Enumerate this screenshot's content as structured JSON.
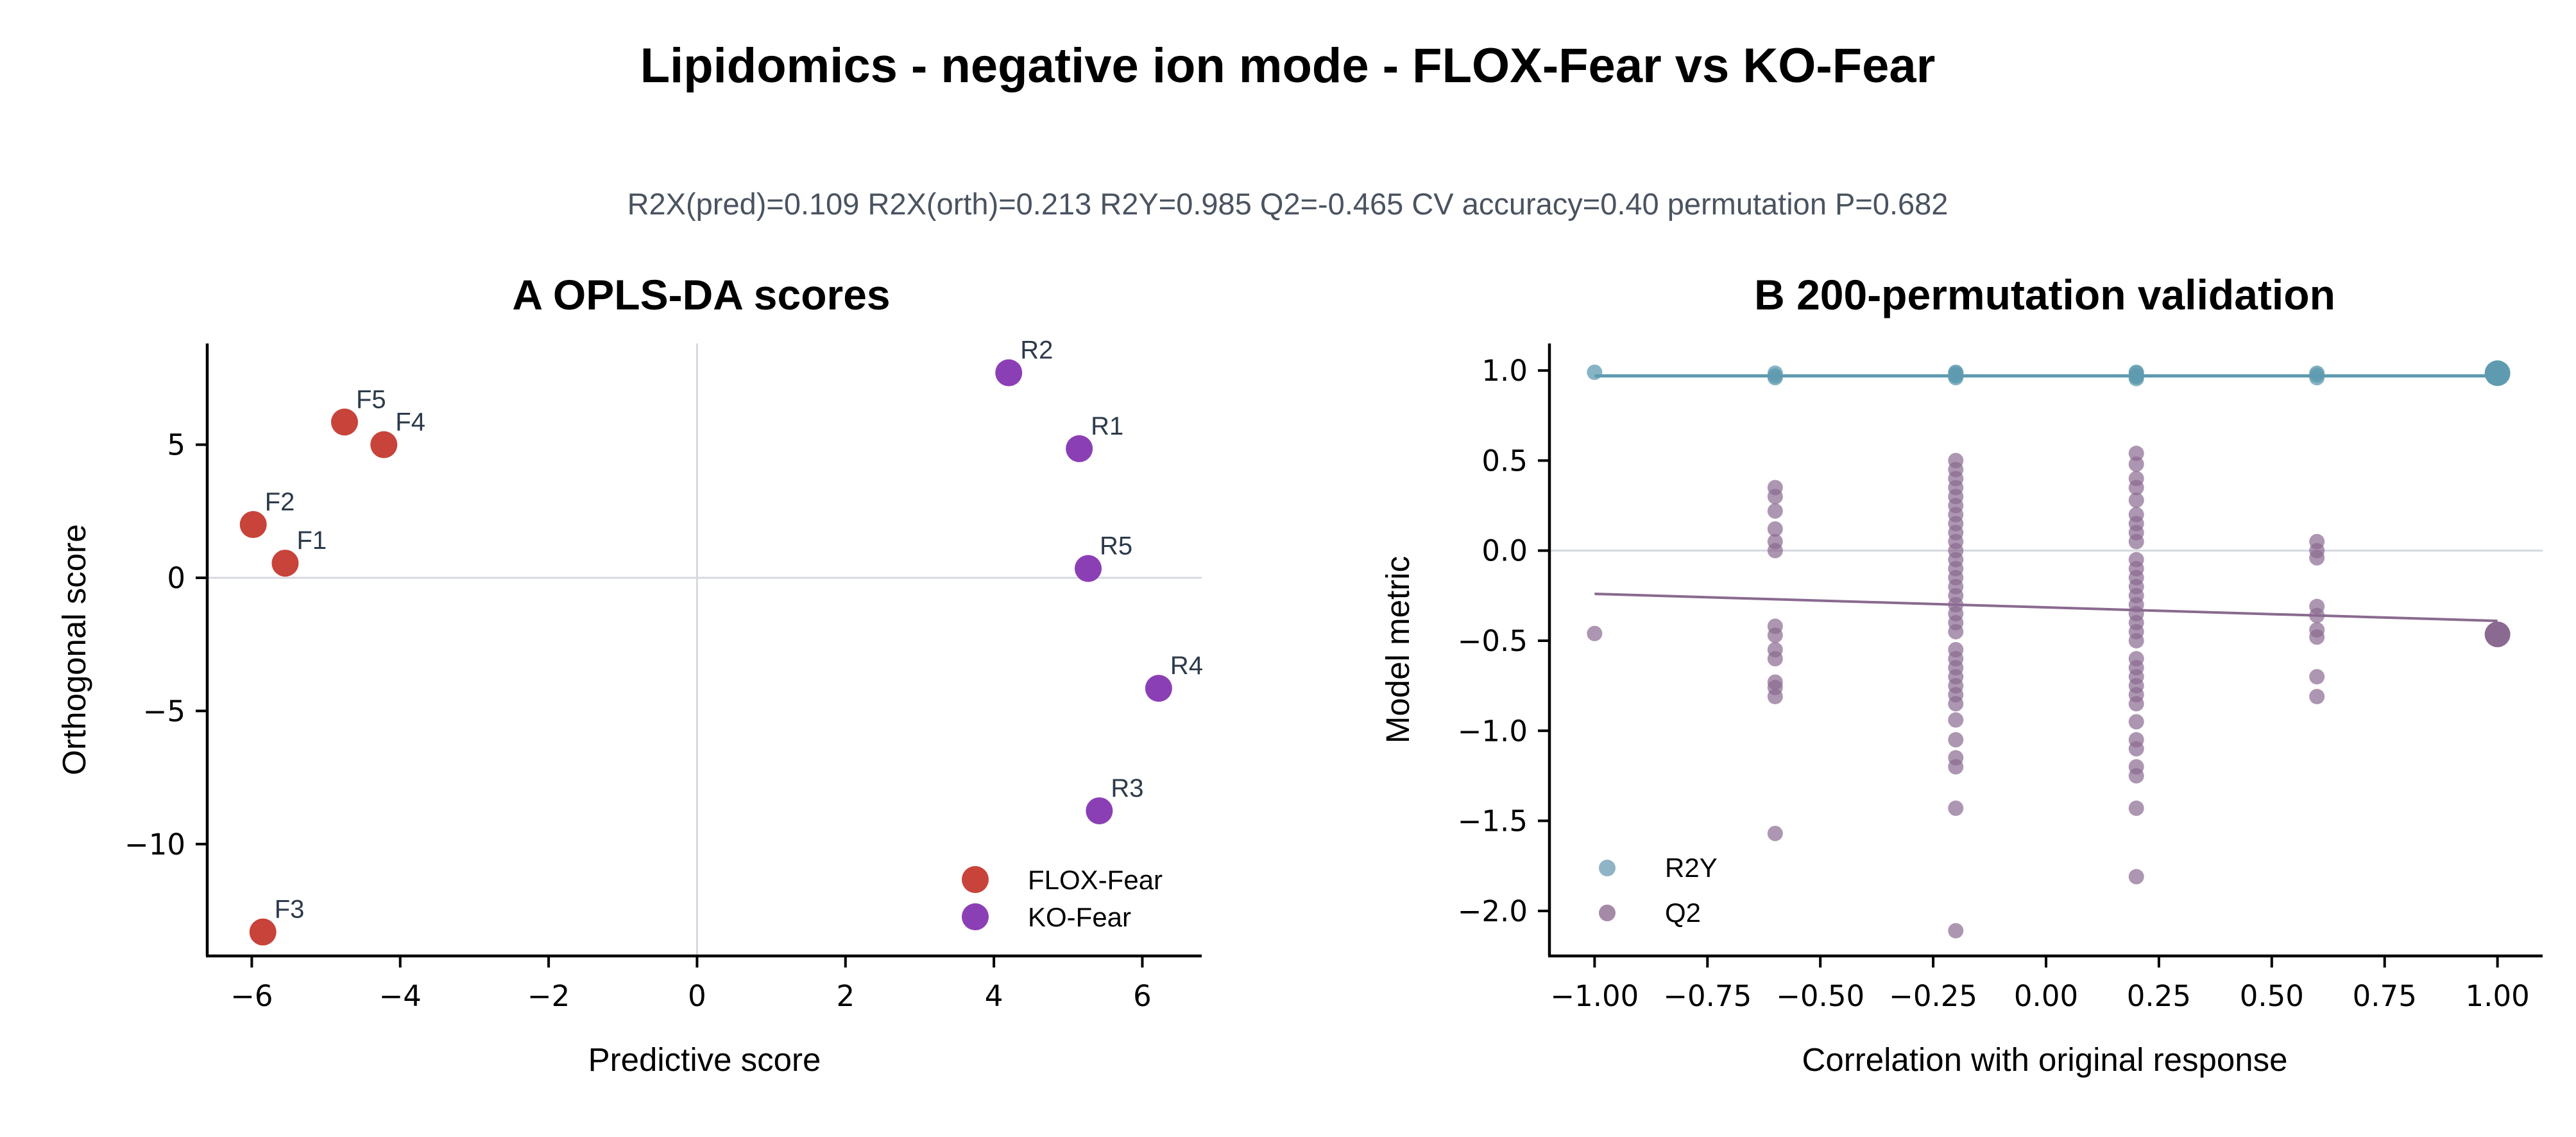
{
  "figure": {
    "title": "Lipidomics - negative ion mode - FLOX-Fear vs KO-Fear",
    "metrics": "R2X(pred)=0.109   R2X(orth)=0.213   R2Y=0.985   Q2=-0.465   CV accuracy=0.40   permutation P=0.682"
  },
  "colors": {
    "flox": "#c8433a",
    "ko": "#8b3fb5",
    "r2y": "#8fb4c6",
    "r2y_line": "#5f9bb0",
    "q2": "#a58aa8",
    "q2_dark": "#8a6a90",
    "q2_line": "#8a6a90",
    "refline": "#d5d8e0"
  },
  "chart_data": [
    {
      "type": "scatter",
      "panel": "A",
      "title": "A  OPLS-DA scores",
      "xlabel": "Predictive score",
      "ylabel": "Orthogonal score",
      "xlim": [
        -6.6,
        6.8
      ],
      "ylim": [
        -14.2,
        8.8
      ],
      "xticks": [
        -6,
        -4,
        -2,
        0,
        2,
        4,
        6
      ],
      "xtick_labels": [
        "−6",
        "−4",
        "−2",
        "0",
        "2",
        "4",
        "6"
      ],
      "yticks": [
        5,
        0,
        -5,
        -10
      ],
      "ytick_labels": [
        "5",
        "0",
        "−5",
        "−10"
      ],
      "grid": false,
      "reference_lines": {
        "x": 0,
        "y": 0
      },
      "legend_position": "lower-right",
      "series": [
        {
          "name": "FLOX-Fear",
          "color_key": "flox",
          "points": [
            {
              "label": "F1",
              "x": -5.55,
              "y": 0.55
            },
            {
              "label": "F2",
              "x": -5.98,
              "y": 2.0
            },
            {
              "label": "F3",
              "x": -5.85,
              "y": -13.3
            },
            {
              "label": "F4",
              "x": -4.22,
              "y": 5.0
            },
            {
              "label": "F5",
              "x": -4.75,
              "y": 5.85
            }
          ]
        },
        {
          "name": "KO-Fear",
          "color_key": "ko",
          "points": [
            {
              "label": "R1",
              "x": 5.15,
              "y": 4.85
            },
            {
              "label": "R2",
              "x": 4.2,
              "y": 7.7
            },
            {
              "label": "R3",
              "x": 5.42,
              "y": -8.75
            },
            {
              "label": "R4",
              "x": 6.22,
              "y": -4.15
            },
            {
              "label": "R5",
              "x": 5.27,
              "y": 0.35
            }
          ]
        }
      ]
    },
    {
      "type": "scatter",
      "panel": "B",
      "title": "B  200-permutation validation",
      "xlabel": "Correlation with original response",
      "ylabel": "Model metric",
      "xlim": [
        -1.1,
        1.1
      ],
      "ylim": [
        -2.25,
        1.15
      ],
      "xticks": [
        -1.0,
        -0.75,
        -0.5,
        -0.25,
        0.0,
        0.25,
        0.5,
        0.75,
        1.0
      ],
      "xtick_labels": [
        "−1.00",
        "−0.75",
        "−0.50",
        "−0.25",
        "0.00",
        "0.25",
        "0.50",
        "0.75",
        "1.00"
      ],
      "yticks": [
        1.0,
        0.5,
        0.0,
        -0.5,
        -1.0,
        -1.5,
        -2.0
      ],
      "ytick_labels": [
        "1.0",
        "0.5",
        "0.0",
        "−0.5",
        "−1.0",
        "−1.5",
        "−2.0"
      ],
      "grid": false,
      "reference_lines": {
        "y": 0
      },
      "legend_position": "lower-left",
      "original": {
        "x": 1.0,
        "r2y": 0.985,
        "q2": -0.465
      },
      "series": [
        {
          "name": "R2Y",
          "color_key": "r2y",
          "points": [
            {
              "x": -1.0,
              "y": 0.99
            },
            {
              "x": -0.6,
              "y": 0.97
            },
            {
              "x": -0.6,
              "y": 0.985
            },
            {
              "x": -0.6,
              "y": 0.96
            },
            {
              "x": -0.2,
              "y": 0.97
            },
            {
              "x": -0.2,
              "y": 0.985
            },
            {
              "x": -0.2,
              "y": 0.96
            },
            {
              "x": -0.2,
              "y": 0.975
            },
            {
              "x": -0.2,
              "y": 0.99
            },
            {
              "x": 0.2,
              "y": 0.97
            },
            {
              "x": 0.2,
              "y": 0.985
            },
            {
              "x": 0.2,
              "y": 0.955
            },
            {
              "x": 0.2,
              "y": 0.99
            },
            {
              "x": 0.2,
              "y": 0.965
            },
            {
              "x": 0.6,
              "y": 0.975
            },
            {
              "x": 0.6,
              "y": 0.96
            },
            {
              "x": 0.6,
              "y": 0.985
            }
          ],
          "fit_line": {
            "x": [
              -1.0,
              1.0
            ],
            "y": [
              0.97,
              0.97
            ]
          }
        },
        {
          "name": "Q2",
          "color_key": "q2",
          "points": [
            {
              "x": -1.0,
              "y": -0.46
            },
            {
              "x": -0.6,
              "y": 0.35
            },
            {
              "x": -0.6,
              "y": 0.3
            },
            {
              "x": -0.6,
              "y": 0.22
            },
            {
              "x": -0.6,
              "y": 0.12
            },
            {
              "x": -0.6,
              "y": 0.05
            },
            {
              "x": -0.6,
              "y": 0.0
            },
            {
              "x": -0.6,
              "y": -0.42
            },
            {
              "x": -0.6,
              "y": -0.47
            },
            {
              "x": -0.6,
              "y": -0.55
            },
            {
              "x": -0.6,
              "y": -0.6
            },
            {
              "x": -0.6,
              "y": -0.73
            },
            {
              "x": -0.6,
              "y": -0.76
            },
            {
              "x": -0.6,
              "y": -0.81
            },
            {
              "x": -0.6,
              "y": -1.57
            },
            {
              "x": -0.2,
              "y": 0.5
            },
            {
              "x": -0.2,
              "y": 0.45
            },
            {
              "x": -0.2,
              "y": 0.4
            },
            {
              "x": -0.2,
              "y": 0.35
            },
            {
              "x": -0.2,
              "y": 0.3
            },
            {
              "x": -0.2,
              "y": 0.25
            },
            {
              "x": -0.2,
              "y": 0.2
            },
            {
              "x": -0.2,
              "y": 0.15
            },
            {
              "x": -0.2,
              "y": 0.1
            },
            {
              "x": -0.2,
              "y": 0.05
            },
            {
              "x": -0.2,
              "y": 0.0
            },
            {
              "x": -0.2,
              "y": -0.05
            },
            {
              "x": -0.2,
              "y": -0.1
            },
            {
              "x": -0.2,
              "y": -0.15
            },
            {
              "x": -0.2,
              "y": -0.2
            },
            {
              "x": -0.2,
              "y": -0.25
            },
            {
              "x": -0.2,
              "y": -0.3
            },
            {
              "x": -0.2,
              "y": -0.35
            },
            {
              "x": -0.2,
              "y": -0.4
            },
            {
              "x": -0.2,
              "y": -0.45
            },
            {
              "x": -0.2,
              "y": -0.55
            },
            {
              "x": -0.2,
              "y": -0.6
            },
            {
              "x": -0.2,
              "y": -0.65
            },
            {
              "x": -0.2,
              "y": -0.7
            },
            {
              "x": -0.2,
              "y": -0.75
            },
            {
              "x": -0.2,
              "y": -0.8
            },
            {
              "x": -0.2,
              "y": -0.85
            },
            {
              "x": -0.2,
              "y": -0.94
            },
            {
              "x": -0.2,
              "y": -1.05
            },
            {
              "x": -0.2,
              "y": -1.15
            },
            {
              "x": -0.2,
              "y": -1.2
            },
            {
              "x": -0.2,
              "y": -1.43
            },
            {
              "x": -0.2,
              "y": -2.11
            },
            {
              "x": 0.2,
              "y": 0.54
            },
            {
              "x": 0.2,
              "y": 0.48
            },
            {
              "x": 0.2,
              "y": 0.4
            },
            {
              "x": 0.2,
              "y": 0.35
            },
            {
              "x": 0.2,
              "y": 0.28
            },
            {
              "x": 0.2,
              "y": 0.2
            },
            {
              "x": 0.2,
              "y": 0.15
            },
            {
              "x": 0.2,
              "y": 0.1
            },
            {
              "x": 0.2,
              "y": 0.05
            },
            {
              "x": 0.2,
              "y": -0.05
            },
            {
              "x": 0.2,
              "y": -0.1
            },
            {
              "x": 0.2,
              "y": -0.15
            },
            {
              "x": 0.2,
              "y": -0.2
            },
            {
              "x": 0.2,
              "y": -0.25
            },
            {
              "x": 0.2,
              "y": -0.3
            },
            {
              "x": 0.2,
              "y": -0.35
            },
            {
              "x": 0.2,
              "y": -0.4
            },
            {
              "x": 0.2,
              "y": -0.45
            },
            {
              "x": 0.2,
              "y": -0.5
            },
            {
              "x": 0.2,
              "y": -0.6
            },
            {
              "x": 0.2,
              "y": -0.65
            },
            {
              "x": 0.2,
              "y": -0.7
            },
            {
              "x": 0.2,
              "y": -0.75
            },
            {
              "x": 0.2,
              "y": -0.8
            },
            {
              "x": 0.2,
              "y": -0.85
            },
            {
              "x": 0.2,
              "y": -0.95
            },
            {
              "x": 0.2,
              "y": -1.05
            },
            {
              "x": 0.2,
              "y": -1.1
            },
            {
              "x": 0.2,
              "y": -1.2
            },
            {
              "x": 0.2,
              "y": -1.25
            },
            {
              "x": 0.2,
              "y": -1.43
            },
            {
              "x": 0.2,
              "y": -1.81
            },
            {
              "x": 0.6,
              "y": 0.05
            },
            {
              "x": 0.6,
              "y": 0.0
            },
            {
              "x": 0.6,
              "y": -0.04
            },
            {
              "x": 0.6,
              "y": -0.31
            },
            {
              "x": 0.6,
              "y": -0.36
            },
            {
              "x": 0.6,
              "y": -0.44
            },
            {
              "x": 0.6,
              "y": -0.48
            },
            {
              "x": 0.6,
              "y": -0.7
            },
            {
              "x": 0.6,
              "y": -0.81
            }
          ],
          "fit_line": {
            "x": [
              -1.0,
              1.0
            ],
            "y": [
              -0.24,
              -0.39
            ]
          }
        }
      ]
    }
  ]
}
